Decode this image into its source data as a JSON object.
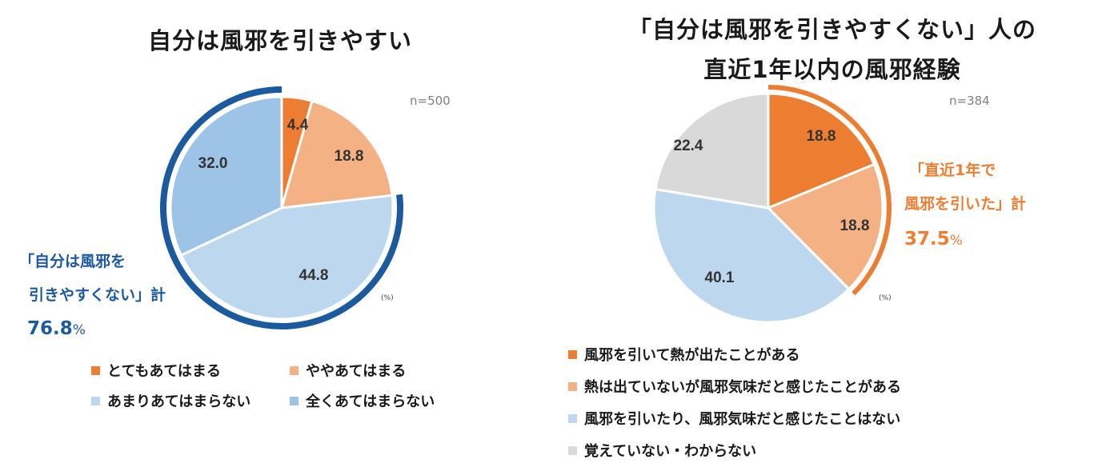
{
  "chart_data": [
    {
      "type": "pie",
      "title": "自分は風邪を引きやすい",
      "n_label": "n=500",
      "unit_label": "(%)",
      "categories": [
        "とてもあてはまる",
        "ややあてはまる",
        "あまりあてはまらない",
        "全くあてはまらない"
      ],
      "values": [
        4.4,
        18.8,
        44.8,
        32.0
      ],
      "value_labels": [
        "4.4",
        "18.8",
        "44.8",
        "32.0"
      ],
      "colors": [
        "#ed7d31",
        "#f4b183",
        "#bdd7ee",
        "#9dc3e6"
      ],
      "highlight": {
        "label_lines": [
          "「自分は風邪を",
          "引きやすくない」計"
        ],
        "total": "76.8",
        "total_suffix": "%",
        "categories": [
          "あまりあてはまらない",
          "全くあてはまらない"
        ],
        "color": "#1c5aa0"
      }
    },
    {
      "type": "pie",
      "title_lines": [
        "「自分は風邪を引きやすくない」人の",
        "直近1年以内の風邪経験"
      ],
      "n_label": "n=384",
      "unit_label": "(%)",
      "categories": [
        "風邪を引いて熱が出たことがある",
        "熱は出ていないが風邪気味だと感じたことがある",
        "風邪を引いたり、風邪気味だと感じたことはない",
        "覚えていない・わからない"
      ],
      "values": [
        18.8,
        18.8,
        40.1,
        22.4
      ],
      "value_labels": [
        "18.8",
        "18.8",
        "40.1",
        "22.4"
      ],
      "colors": [
        "#ed7d31",
        "#f4b183",
        "#bdd7ee",
        "#d9d9d9"
      ],
      "highlight": {
        "label_lines": [
          "「直近1年で",
          "風邪を引いた」計"
        ],
        "total": "37.5",
        "total_suffix": "%",
        "categories": [
          "風邪を引いて熱が出たことがある",
          "熱は出ていないが風邪気味だと感じたことがある"
        ],
        "color": "#ed7d31"
      }
    }
  ]
}
